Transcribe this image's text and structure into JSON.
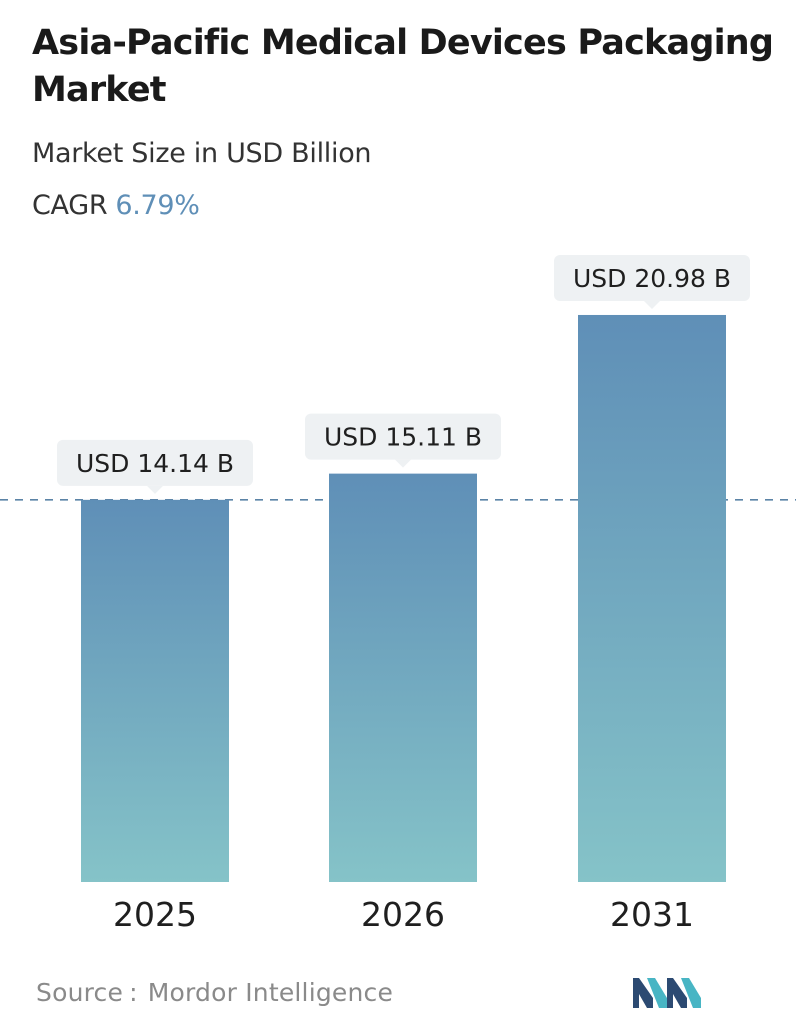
{
  "header": {
    "title": "Asia-Pacific Medical Devices Packaging Market",
    "subtitle": "Market Size in USD Billion",
    "cagr_label": "CAGR",
    "cagr_value": "6.79%"
  },
  "footer": {
    "source_label": "Source",
    "source_separator": ":",
    "source_name": "Mordor Intelligence",
    "logo_icon": "mordor-intelligence-logo-icon"
  },
  "colors": {
    "bar_top": "#5f8fb7",
    "bar_bottom": "#85c3c8",
    "label_bg": "#eef1f3",
    "reference_line": "#5b83a6",
    "cagr_value": "#5f8fb7",
    "logo_dark": "#2c4a72",
    "logo_light": "#48b5c4"
  },
  "chart_data": {
    "type": "bar",
    "title": "Asia-Pacific Medical Devices Packaging Market",
    "subtitle": "Market Size in USD Billion",
    "categories": [
      "2025",
      "2026",
      "2031"
    ],
    "values": [
      14.14,
      15.11,
      20.98
    ],
    "data_labels": [
      "USD 14.14 B",
      "USD 15.11 B",
      "USD 20.98 B"
    ],
    "unit": "USD Billion",
    "ylim": [
      0,
      22.2
    ],
    "reference_line": 14.14,
    "reference_line_style": "dashed",
    "grid": false,
    "legend": "none"
  }
}
